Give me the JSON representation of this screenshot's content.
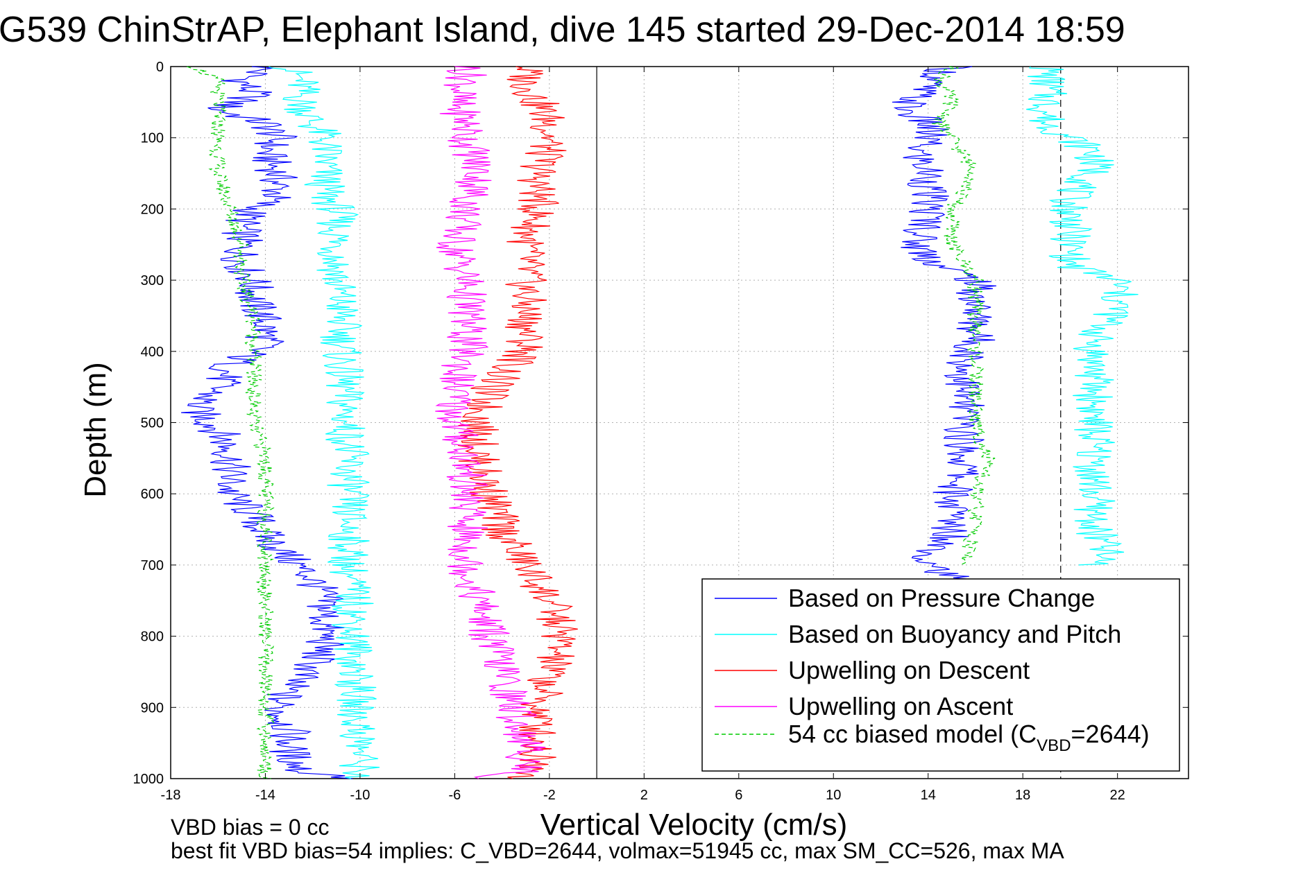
{
  "figure": {
    "title": "G539 ChinStrAP, Elephant Island, dive 145 started 29-Dec-2014 18:59",
    "footer_line1": "VBD bias = 0 cc",
    "footer_line2": "best fit VBD bias=54 implies: C_VBD=2644, volmax=51945 cc, max SM_CC=526, max MA"
  },
  "chart_data": {
    "type": "line",
    "title": "G539 ChinStrAP, Elephant Island, dive 145 started 29-Dec-2014 18:59",
    "xlabel": "Vertical Velocity (cm/s)",
    "ylabel": "Depth (m)",
    "xlim": [
      -18,
      25
    ],
    "ylim": [
      0,
      1000
    ],
    "y_reversed": true,
    "grid": true,
    "x_ticks": [
      -18,
      -14,
      -10,
      -6,
      -2,
      2,
      6,
      10,
      14,
      18,
      22
    ],
    "y_ticks": [
      0,
      100,
      200,
      300,
      400,
      500,
      600,
      700,
      800,
      900,
      1000
    ],
    "legend_position": "bottom-right",
    "reference_lines": [
      {
        "x": 0,
        "style": "solid",
        "color": "#000000"
      },
      {
        "x": 19.6,
        "style": "dashed",
        "color": "#000000"
      }
    ],
    "legend": [
      {
        "label": "Based on Pressure Change",
        "color": "#0000ff",
        "dash": "solid"
      },
      {
        "label": "Based on Buoyancy and Pitch",
        "color": "#00ffff",
        "dash": "solid"
      },
      {
        "label": "Upwelling on Descent",
        "color": "#ff0000",
        "dash": "solid"
      },
      {
        "label": "Upwelling on Ascent",
        "color": "#ff00ff",
        "dash": "solid"
      },
      {
        "label": "54 cc biased model (C",
        "sub": "VBD",
        "suffix": "=2644)",
        "color": "#00cc00",
        "dash": "dashed"
      }
    ],
    "series": [
      {
        "name": "Based on Pressure Change (descent)",
        "color": "#0000ff",
        "dash": "solid",
        "depth": [
          0,
          20,
          40,
          60,
          80,
          100,
          120,
          150,
          180,
          200,
          220,
          250,
          280,
          300,
          330,
          360,
          390,
          420,
          450,
          480,
          510,
          540,
          570,
          600,
          630,
          660,
          690,
          720,
          750,
          780,
          810,
          840,
          870,
          900,
          930,
          960,
          990,
          1000
        ],
        "velocity": [
          -14,
          -15,
          -14.5,
          -16,
          -14,
          -13.5,
          -14,
          -13.5,
          -13.5,
          -14.5,
          -15,
          -15,
          -15,
          -14.5,
          -14.5,
          -14,
          -14,
          -15.5,
          -16,
          -17,
          -16,
          -15.5,
          -15.5,
          -15.5,
          -14.5,
          -14,
          -13,
          -12,
          -11.5,
          -11.5,
          -11.5,
          -12,
          -13,
          -13.5,
          -13,
          -13,
          -12.5,
          -10
        ]
      },
      {
        "name": "Based on Buoyancy and Pitch (descent)",
        "color": "#00ffff",
        "dash": "solid",
        "depth": [
          0,
          20,
          50,
          80,
          100,
          120,
          150,
          180,
          200,
          240,
          280,
          300,
          340,
          380,
          400,
          450,
          500,
          550,
          600,
          650,
          700,
          750,
          800,
          850,
          900,
          950,
          990,
          1000
        ],
        "velocity": [
          -13,
          -12.5,
          -12.5,
          -12,
          -11.5,
          -11.5,
          -11.5,
          -11.5,
          -11,
          -11,
          -11,
          -11,
          -10.8,
          -10.8,
          -10.8,
          -10.7,
          -10.6,
          -10.5,
          -10.5,
          -10.5,
          -10.5,
          -10.3,
          -10.3,
          -10.2,
          -10.2,
          -10,
          -10,
          -10
        ]
      },
      {
        "name": "Upwelling on Descent",
        "color": "#ff0000",
        "dash": "solid",
        "depth": [
          0,
          20,
          50,
          80,
          100,
          150,
          200,
          250,
          300,
          350,
          400,
          450,
          500,
          550,
          600,
          650,
          700,
          750,
          800,
          850,
          900,
          950,
          990,
          1000
        ],
        "velocity": [
          -3,
          -3,
          -2.5,
          -2,
          -2,
          -2.5,
          -2.5,
          -3,
          -3,
          -3,
          -3,
          -4.5,
          -5,
          -5,
          -4.5,
          -4,
          -3,
          -2,
          -1.5,
          -2,
          -2.5,
          -2.5,
          -2.5,
          -3
        ]
      },
      {
        "name": "Upwelling on Ascent",
        "color": "#ff00ff",
        "dash": "solid",
        "depth": [
          0,
          20,
          50,
          80,
          100,
          150,
          200,
          250,
          300,
          350,
          400,
          450,
          500,
          550,
          600,
          650,
          700,
          750,
          800,
          850,
          900,
          950,
          990,
          1000
        ],
        "velocity": [
          -5.5,
          -5.5,
          -6,
          -5.5,
          -5.5,
          -5,
          -5.5,
          -6,
          -5.5,
          -5.5,
          -5.5,
          -6,
          -6,
          -5.5,
          -5.5,
          -5.5,
          -5.5,
          -5,
          -4.5,
          -4,
          -3.5,
          -3,
          -3,
          -5
        ]
      },
      {
        "name": "54 cc biased model (descent)",
        "color": "#00cc00",
        "dash": "dashed",
        "depth": [
          0,
          20,
          50,
          80,
          100,
          150,
          200,
          250,
          300,
          350,
          400,
          450,
          500,
          550,
          600,
          650,
          700,
          750,
          800,
          850,
          900,
          950,
          990,
          1000
        ],
        "velocity": [
          -17,
          -16,
          -16,
          -16,
          -16,
          -16,
          -15.5,
          -15,
          -15,
          -14.5,
          -14.5,
          -14.5,
          -14.5,
          -14,
          -14,
          -14,
          -14,
          -14,
          -14,
          -14,
          -14,
          -14,
          -14,
          -14
        ]
      },
      {
        "name": "Based on Pressure Change (ascent)",
        "color": "#0000ff",
        "dash": "solid",
        "depth": [
          0,
          20,
          40,
          60,
          80,
          100,
          120,
          150,
          180,
          200,
          220,
          250,
          280,
          300,
          330,
          360,
          390,
          420,
          450,
          480,
          510,
          540,
          570,
          600,
          630,
          660,
          690,
          720
        ],
        "velocity": [
          15,
          14,
          13.5,
          13,
          14,
          14,
          13.5,
          14,
          14,
          14,
          14,
          13.5,
          14.5,
          16,
          16,
          16,
          16,
          15.5,
          15.5,
          15.5,
          15.5,
          15.5,
          15.5,
          15,
          15,
          15,
          14,
          15
        ]
      },
      {
        "name": "Based on Buoyancy and Pitch (ascent)",
        "color": "#00ffff",
        "dash": "solid",
        "depth": [
          0,
          20,
          50,
          80,
          100,
          120,
          150,
          180,
          200,
          240,
          280,
          300,
          340,
          380,
          400,
          450,
          500,
          550,
          600,
          650,
          680,
          700
        ],
        "velocity": [
          19,
          19,
          19,
          19,
          20,
          21,
          21,
          20,
          20,
          20,
          20,
          22,
          22,
          21,
          21,
          21,
          21,
          21,
          21,
          21,
          21.5,
          21
        ]
      },
      {
        "name": "54 cc biased model (ascent)",
        "color": "#00cc00",
        "dash": "dashed",
        "depth": [
          0,
          20,
          50,
          80,
          100,
          150,
          200,
          250,
          300,
          350,
          400,
          450,
          500,
          550,
          600,
          650,
          700
        ],
        "velocity": [
          15,
          14.5,
          15,
          14.5,
          15,
          16,
          15,
          15,
          16,
          16,
          16,
          16,
          16,
          16.5,
          16,
          16,
          15.5
        ]
      }
    ]
  }
}
